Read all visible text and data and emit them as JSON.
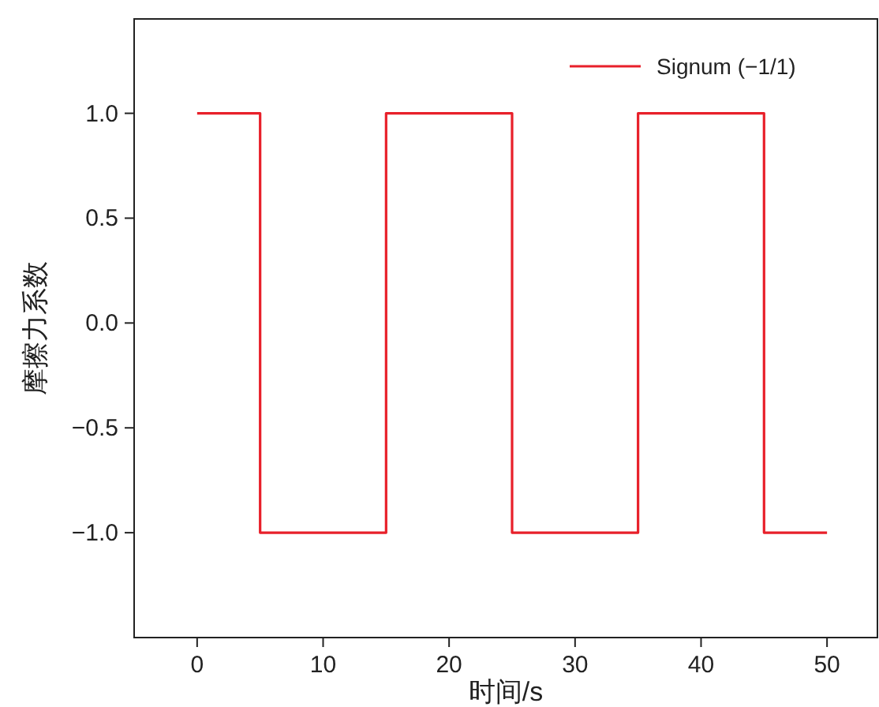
{
  "chart_data": {
    "type": "line",
    "xlabel": "时间/s",
    "ylabel": "摩擦力系数",
    "xlim": [
      -5,
      54
    ],
    "ylim": [
      -1.5,
      1.45
    ],
    "xticks": [
      0,
      10,
      20,
      30,
      40,
      50
    ],
    "yticks": [
      {
        "value": -1,
        "label": "−1.0"
      },
      {
        "value": -0.5,
        "label": "−0.5"
      },
      {
        "value": 0,
        "label": "0.0"
      },
      {
        "value": 0.5,
        "label": "0.5"
      },
      {
        "value": 1,
        "label": "1.0"
      }
    ],
    "grid": false,
    "legend": "top right",
    "marker": "none",
    "line_style": "solid",
    "series": [
      {
        "name": "Signum (−1/1)",
        "color": "#e8202a",
        "x": [
          0,
          5,
          5,
          15,
          15,
          25,
          25,
          35,
          35,
          45,
          45,
          50
        ],
        "values": [
          1,
          1,
          -1,
          -1,
          1,
          1,
          -1,
          -1,
          1,
          1,
          -1,
          -1
        ]
      }
    ]
  }
}
